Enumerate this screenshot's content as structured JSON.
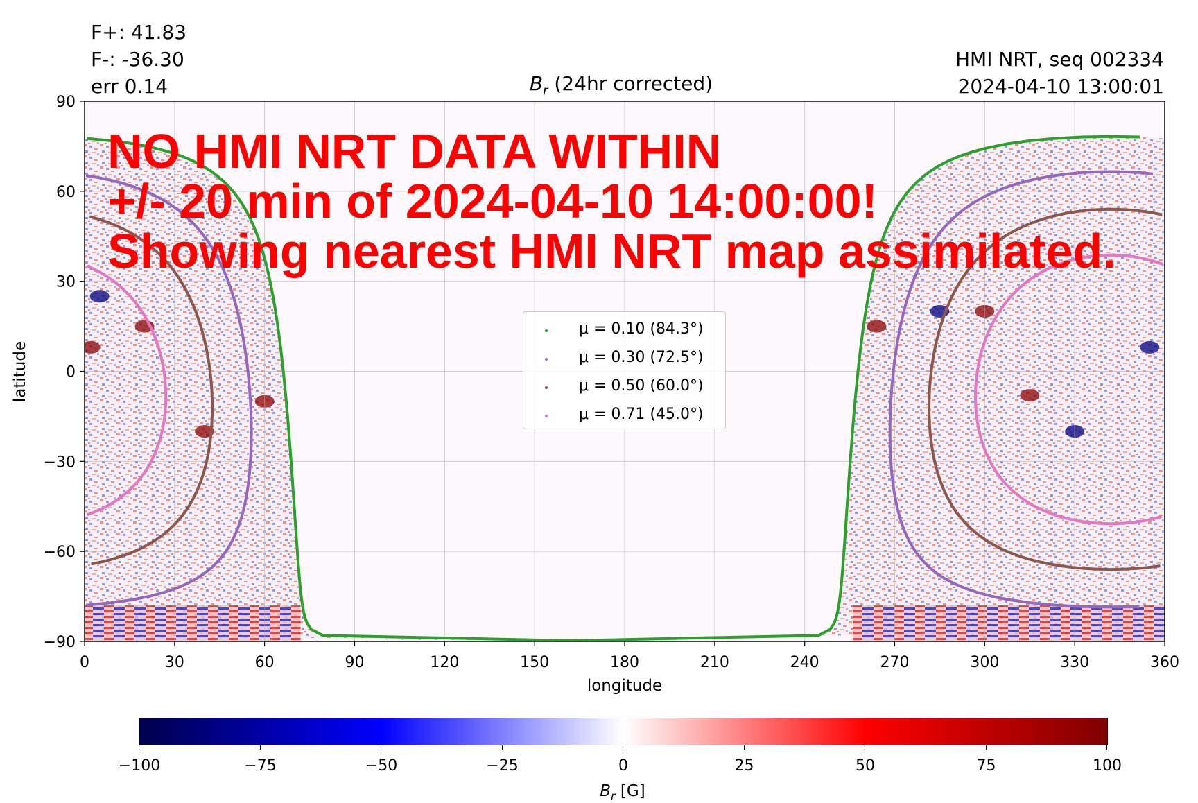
{
  "header": {
    "stats": [
      "F+: 41.83",
      "F-: -36.30",
      "err 0.14"
    ],
    "source_line1": "HMI NRT, seq 002334",
    "source_line2": "2024-04-10 13:00:01"
  },
  "chart_data": [
    {
      "type": "heatmap",
      "title_symbol": "B",
      "title_subscript": "r",
      "title_rest": " (24hr corrected)",
      "xlabel": "longitude",
      "ylabel": "latitude",
      "xlim": [
        0,
        360
      ],
      "ylim": [
        -90,
        90
      ],
      "x_ticks": [
        0,
        30,
        60,
        90,
        120,
        150,
        180,
        210,
        240,
        270,
        300,
        330,
        360
      ],
      "y_ticks": [
        90,
        60,
        30,
        0,
        -30,
        -60,
        -90
      ],
      "y_tick_labels": [
        "90",
        "60",
        "30",
        "0",
        "−30",
        "−60",
        "−90"
      ],
      "grid": true,
      "colormap": "seismic",
      "legend_location": "center",
      "series": [
        {
          "name": "μ = 0.10 (84.3°)",
          "mu": 0.1,
          "angle_deg": 84.3,
          "color": "#2ca02c"
        },
        {
          "name": "μ = 0.30 (72.5°)",
          "mu": 0.3,
          "angle_deg": 72.5,
          "color": "#9467bd"
        },
        {
          "name": "μ = 0.50 (60.0°)",
          "mu": 0.5,
          "angle_deg": 60.0,
          "color": "#8c564b"
        },
        {
          "name": "μ = 0.71 (45.0°)",
          "mu": 0.71,
          "angle_deg": 45.0,
          "color": "#e377c2"
        }
      ],
      "disk_center": {
        "lon": 342,
        "lat": -6
      },
      "observed_region_boundary": "μ = 0.10"
    },
    {
      "type": "colorbar",
      "label_symbol": "B",
      "label_subscript": "r",
      "label_rest": " [G]",
      "range": [
        -100,
        100
      ],
      "ticks": [
        -100,
        -75,
        -50,
        -25,
        0,
        25,
        50,
        75,
        100
      ],
      "tick_labels": [
        "−100",
        "−75",
        "−50",
        "−25",
        "0",
        "25",
        "50",
        "75",
        "100"
      ]
    }
  ],
  "warning": {
    "lines": [
      "NO HMI NRT DATA WITHIN",
      "+/- 20 min of 2024-04-10 14:00:00!",
      "Showing nearest HMI NRT map assimilated."
    ],
    "color": "#ff0000"
  }
}
